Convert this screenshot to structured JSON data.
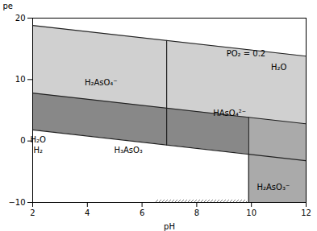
{
  "chart_data": {
    "type": "area",
    "xlabel": "pH",
    "ylabel": "pe",
    "xlim": [
      2,
      12
    ],
    "ylim": [
      -10,
      20
    ],
    "xticks": [
      2,
      4,
      6,
      8,
      10,
      12
    ],
    "yticks": [
      -10,
      0,
      10,
      20
    ],
    "grid": false,
    "regions": [
      {
        "color": "#d0d0d0",
        "x": [
          2,
          12
        ],
        "lower": [
          7.8,
          2.8
        ],
        "upper": [
          18.8,
          13.8
        ]
      },
      {
        "color": "#888888",
        "x": [
          2,
          9.9
        ],
        "lower": [
          1.8,
          -2.15
        ],
        "upper": [
          7.8,
          3.85
        ]
      },
      {
        "color": "#aaaaaa",
        "x": [
          9.9,
          12
        ],
        "lower": [
          -10,
          -10
        ],
        "upper": [
          3.85,
          2.8
        ]
      },
      {
        "hatch_color": "#555555",
        "x": [
          6.5,
          9.85
        ],
        "lower": [
          -10,
          -10
        ],
        "upper": [
          -9.6,
          -9.6
        ]
      }
    ],
    "lines": [
      {
        "color": "#222222",
        "x": [
          2,
          12
        ],
        "y": [
          18.8,
          13.8
        ]
      },
      {
        "color": "#222222",
        "x": [
          2,
          12
        ],
        "y": [
          7.8,
          2.8
        ]
      },
      {
        "color": "#222222",
        "x": [
          2,
          12
        ],
        "y": [
          1.8,
          -3.2
        ]
      },
      {
        "color": "#222222",
        "x": [
          6.9,
          6.9
        ],
        "y": [
          16.35,
          -0.65
        ]
      },
      {
        "color": "#222222",
        "x": [
          9.9,
          9.9
        ],
        "y": [
          3.85,
          -10
        ]
      }
    ],
    "annotations": [
      {
        "text": "H₂AsO₄⁻",
        "x": 4.5,
        "y": 9.5
      },
      {
        "text": "HAsO₄²⁻",
        "x": 9.2,
        "y": 4.5
      },
      {
        "text": "H₃AsO₃",
        "x": 5.5,
        "y": -1.5
      },
      {
        "text": "H₂AsO₃⁻",
        "x": 10.8,
        "y": -7.5
      },
      {
        "text": "H₂O",
        "x": 11.0,
        "y": 12.0
      },
      {
        "text": "PO₂ = 0.2",
        "x": 9.8,
        "y": 14.2
      },
      {
        "text": "H₂O",
        "x": 2.2,
        "y": 0.2
      },
      {
        "text": "H₂",
        "x": 2.2,
        "y": -1.5
      }
    ]
  }
}
